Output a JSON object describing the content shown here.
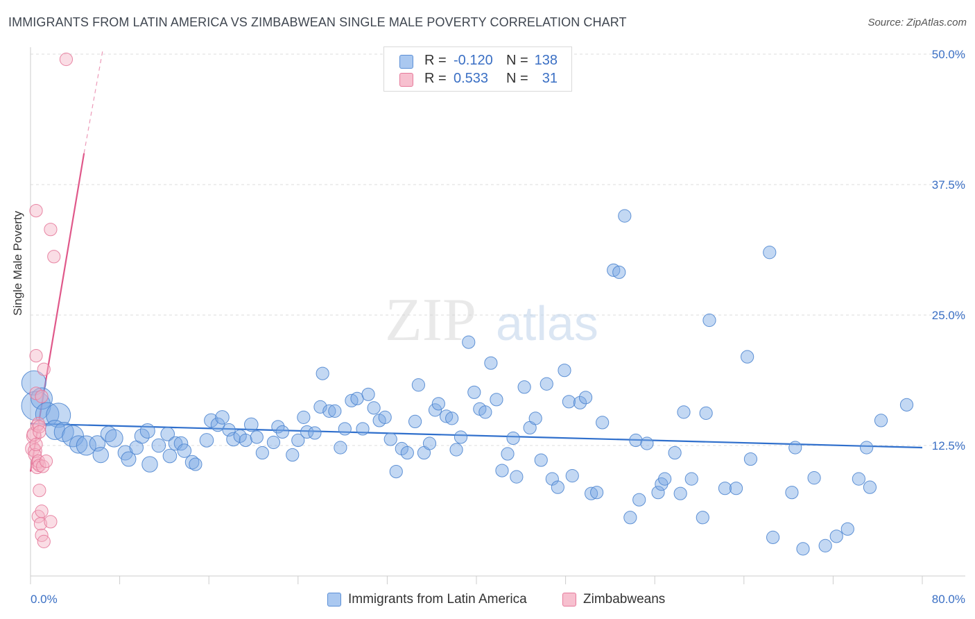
{
  "title": "IMMIGRANTS FROM LATIN AMERICA VS ZIMBABWEAN SINGLE MALE POVERTY CORRELATION CHART",
  "source": "Source: ZipAtlas.com",
  "watermark": {
    "zip": "ZIP",
    "atlas": "atlas"
  },
  "stats": [
    {
      "r_label": "R =",
      "r_value": "-0.120",
      "n_label": "N =",
      "n_value": "138",
      "color": "#aac8f0",
      "border": "#5b8fd6"
    },
    {
      "r_label": "R =",
      "r_value": "0.533",
      "n_label": "N =",
      "n_value": "31",
      "color": "#f7c0cf",
      "border": "#e67a9b"
    }
  ],
  "legend": [
    {
      "label": "Immigrants from Latin America",
      "color": "#aac8f0",
      "border": "#5b8fd6"
    },
    {
      "label": "Zimbabweans",
      "color": "#f7c0cf",
      "border": "#e67a9b"
    }
  ],
  "chart_data": {
    "type": "scatter",
    "xlabel": "",
    "ylabel": "Single Male Poverty",
    "xlim": [
      0,
      80
    ],
    "ylim": [
      0,
      50
    ],
    "x_tick_labels": [
      {
        "value": 0,
        "label": "0.0%"
      },
      {
        "value": 80,
        "label": "80.0%"
      }
    ],
    "y_tick_labels": [
      {
        "value": 12.5,
        "label": "12.5%"
      },
      {
        "value": 25,
        "label": "25.0%"
      },
      {
        "value": 37.5,
        "label": "37.5%"
      },
      {
        "value": 50,
        "label": "50.0%"
      }
    ],
    "grid": true,
    "series": [
      {
        "name": "Immigrants from Latin America",
        "color": "#7aa8e4",
        "stroke": "#4f86d0",
        "trend": {
          "x0": 0,
          "y0": 14.6,
          "x1": 80,
          "y1": 12.3,
          "color": "#2f6fcc"
        },
        "points": [
          [
            0.3,
            18.5,
            2.5
          ],
          [
            0.5,
            16.3,
            3
          ],
          [
            1.0,
            17.0,
            2.2
          ],
          [
            1.5,
            15.5,
            2.4
          ],
          [
            2.5,
            15.4,
            2.5
          ],
          [
            2.2,
            14.0,
            2.0
          ],
          [
            3.0,
            13.8,
            2.0
          ],
          [
            3.8,
            13.4,
            2.2
          ],
          [
            4.3,
            12.6,
            1.8
          ],
          [
            5.0,
            12.5,
            2.0
          ],
          [
            6.0,
            12.7,
            1.6
          ],
          [
            6.3,
            11.6,
            1.6
          ],
          [
            7.0,
            13.6,
            1.6
          ],
          [
            7.5,
            13.2,
            1.8
          ],
          [
            8.5,
            11.8,
            1.5
          ],
          [
            8.8,
            11.2,
            1.5
          ],
          [
            9.5,
            12.3,
            1.4
          ],
          [
            10.0,
            13.4,
            1.5
          ],
          [
            10.5,
            13.9,
            1.5
          ],
          [
            10.7,
            10.7,
            1.6
          ],
          [
            11.5,
            12.5,
            1.4
          ],
          [
            12.3,
            13.6,
            1.4
          ],
          [
            12.5,
            11.5,
            1.4
          ],
          [
            13.0,
            12.7,
            1.4
          ],
          [
            13.5,
            12.7,
            1.4
          ],
          [
            13.8,
            12.0,
            1.4
          ],
          [
            14.5,
            10.9,
            1.4
          ],
          [
            14.8,
            10.7,
            1.3
          ],
          [
            15.8,
            13.0,
            1.4
          ],
          [
            16.2,
            14.9,
            1.4
          ],
          [
            16.8,
            14.5,
            1.4
          ],
          [
            17.2,
            15.2,
            1.4
          ],
          [
            17.8,
            14.0,
            1.3
          ],
          [
            18.2,
            13.1,
            1.4
          ],
          [
            18.8,
            13.4,
            1.3
          ],
          [
            19.3,
            13.0,
            1.3
          ],
          [
            19.8,
            14.5,
            1.4
          ],
          [
            20.3,
            13.3,
            1.3
          ],
          [
            20.8,
            11.8,
            1.3
          ],
          [
            21.8,
            12.8,
            1.3
          ],
          [
            22.2,
            14.3,
            1.3
          ],
          [
            22.6,
            13.8,
            1.3
          ],
          [
            23.5,
            11.6,
            1.3
          ],
          [
            24.0,
            13.0,
            1.3
          ],
          [
            24.5,
            15.2,
            1.3
          ],
          [
            24.8,
            13.8,
            1.3
          ],
          [
            25.5,
            13.7,
            1.3
          ],
          [
            26.0,
            16.2,
            1.3
          ],
          [
            26.2,
            19.4,
            1.3
          ],
          [
            26.8,
            15.8,
            1.3
          ],
          [
            27.3,
            15.8,
            1.3
          ],
          [
            27.8,
            12.3,
            1.3
          ],
          [
            28.2,
            14.1,
            1.3
          ],
          [
            28.8,
            16.8,
            1.3
          ],
          [
            29.3,
            17.0,
            1.3
          ],
          [
            29.8,
            14.1,
            1.3
          ],
          [
            30.3,
            17.4,
            1.3
          ],
          [
            30.8,
            16.1,
            1.3
          ],
          [
            31.3,
            14.9,
            1.3
          ],
          [
            31.8,
            15.2,
            1.3
          ],
          [
            32.3,
            13.1,
            1.3
          ],
          [
            32.8,
            10.0,
            1.3
          ],
          [
            33.3,
            12.2,
            1.3
          ],
          [
            33.8,
            11.8,
            1.3
          ],
          [
            34.5,
            14.8,
            1.3
          ],
          [
            34.8,
            18.3,
            1.3
          ],
          [
            35.3,
            11.8,
            1.3
          ],
          [
            35.8,
            12.7,
            1.3
          ],
          [
            36.3,
            15.9,
            1.3
          ],
          [
            36.6,
            16.5,
            1.3
          ],
          [
            37.3,
            15.3,
            1.3
          ],
          [
            37.8,
            15.1,
            1.3
          ],
          [
            38.2,
            12.1,
            1.3
          ],
          [
            38.6,
            13.3,
            1.3
          ],
          [
            39.3,
            22.4,
            1.3
          ],
          [
            39.8,
            17.6,
            1.3
          ],
          [
            40.3,
            16.0,
            1.3
          ],
          [
            40.8,
            15.7,
            1.3
          ],
          [
            41.3,
            20.4,
            1.3
          ],
          [
            41.8,
            16.9,
            1.3
          ],
          [
            42.3,
            10.1,
            1.3
          ],
          [
            42.8,
            11.7,
            1.3
          ],
          [
            43.3,
            13.2,
            1.3
          ],
          [
            43.6,
            9.5,
            1.3
          ],
          [
            44.3,
            18.1,
            1.3
          ],
          [
            44.8,
            14.2,
            1.3
          ],
          [
            45.3,
            15.1,
            1.3
          ],
          [
            45.8,
            11.1,
            1.3
          ],
          [
            46.3,
            18.4,
            1.3
          ],
          [
            46.8,
            9.3,
            1.3
          ],
          [
            47.3,
            8.5,
            1.3
          ],
          [
            47.9,
            19.7,
            1.3
          ],
          [
            48.3,
            16.7,
            1.3
          ],
          [
            48.6,
            9.6,
            1.3
          ],
          [
            49.3,
            16.6,
            1.3
          ],
          [
            49.8,
            17.1,
            1.3
          ],
          [
            50.3,
            7.9,
            1.3
          ],
          [
            50.8,
            8.0,
            1.3
          ],
          [
            51.3,
            14.7,
            1.3
          ],
          [
            52.3,
            29.3,
            1.3
          ],
          [
            52.8,
            29.1,
            1.3
          ],
          [
            53.3,
            34.5,
            1.3
          ],
          [
            53.8,
            5.6,
            1.3
          ],
          [
            54.3,
            13.0,
            1.3
          ],
          [
            54.6,
            7.3,
            1.3
          ],
          [
            55.3,
            12.7,
            1.3
          ],
          [
            56.3,
            8.0,
            1.3
          ],
          [
            56.6,
            8.8,
            1.3
          ],
          [
            56.9,
            9.3,
            1.3
          ],
          [
            57.8,
            11.8,
            1.3
          ],
          [
            58.3,
            7.9,
            1.3
          ],
          [
            58.6,
            15.7,
            1.3
          ],
          [
            59.3,
            9.3,
            1.3
          ],
          [
            60.3,
            5.6,
            1.3
          ],
          [
            60.6,
            15.6,
            1.3
          ],
          [
            60.9,
            24.5,
            1.3
          ],
          [
            62.3,
            8.4,
            1.3
          ],
          [
            63.3,
            8.4,
            1.3
          ],
          [
            64.3,
            21.0,
            1.3
          ],
          [
            64.6,
            11.2,
            1.3
          ],
          [
            66.3,
            31.0,
            1.3
          ],
          [
            66.6,
            3.7,
            1.3
          ],
          [
            68.3,
            8.0,
            1.3
          ],
          [
            68.6,
            12.3,
            1.3
          ],
          [
            69.3,
            2.6,
            1.3
          ],
          [
            70.3,
            9.4,
            1.3
          ],
          [
            71.3,
            2.9,
            1.3
          ],
          [
            72.3,
            3.8,
            1.3
          ],
          [
            73.3,
            4.5,
            1.3
          ],
          [
            74.3,
            9.3,
            1.3
          ],
          [
            75.0,
            12.3,
            1.3
          ],
          [
            75.3,
            8.5,
            1.3
          ],
          [
            76.3,
            14.9,
            1.3
          ],
          [
            78.6,
            16.4,
            1.3
          ]
        ]
      },
      {
        "name": "Zimbabweans",
        "color": "#f4b3c5",
        "stroke": "#e67a9b",
        "trend": {
          "x0": 0,
          "y0": 10.0,
          "x1": 4.8,
          "y1": 40.5,
          "x_dash_end": 6.5,
          "y_dash_end": 50.5,
          "color": "#e0588a"
        },
        "points": [
          [
            0.2,
            12.2,
            1.5
          ],
          [
            0.3,
            13.4,
            1.5
          ],
          [
            0.3,
            13.6,
            1.4
          ],
          [
            0.4,
            12.0,
            1.4
          ],
          [
            0.4,
            11.6,
            1.3
          ],
          [
            0.5,
            21.1,
            1.3
          ],
          [
            0.5,
            17.5,
            1.3
          ],
          [
            0.5,
            12.6,
            1.3
          ],
          [
            0.6,
            14.4,
            1.3
          ],
          [
            0.6,
            10.8,
            1.3
          ],
          [
            0.6,
            10.4,
            1.3
          ],
          [
            0.7,
            14.6,
            1.3
          ],
          [
            0.7,
            11.0,
            1.3
          ],
          [
            0.7,
            5.7,
            1.3
          ],
          [
            0.8,
            14.3,
            1.3
          ],
          [
            0.8,
            13.8,
            1.3
          ],
          [
            0.8,
            10.6,
            1.3
          ],
          [
            0.9,
            5.0,
            1.3
          ],
          [
            1.0,
            17.2,
            1.3
          ],
          [
            1.0,
            3.9,
            1.3
          ],
          [
            1.0,
            6.2,
            1.3
          ],
          [
            1.1,
            10.5,
            1.3
          ],
          [
            1.2,
            3.3,
            1.3
          ],
          [
            1.2,
            19.8,
            1.3
          ],
          [
            1.4,
            11.0,
            1.3
          ],
          [
            1.8,
            5.2,
            1.3
          ],
          [
            0.5,
            35.0,
            1.3
          ],
          [
            0.8,
            8.2,
            1.3
          ],
          [
            1.8,
            33.2,
            1.3
          ],
          [
            2.1,
            30.6,
            1.3
          ],
          [
            3.2,
            49.5,
            1.3
          ]
        ]
      }
    ]
  }
}
